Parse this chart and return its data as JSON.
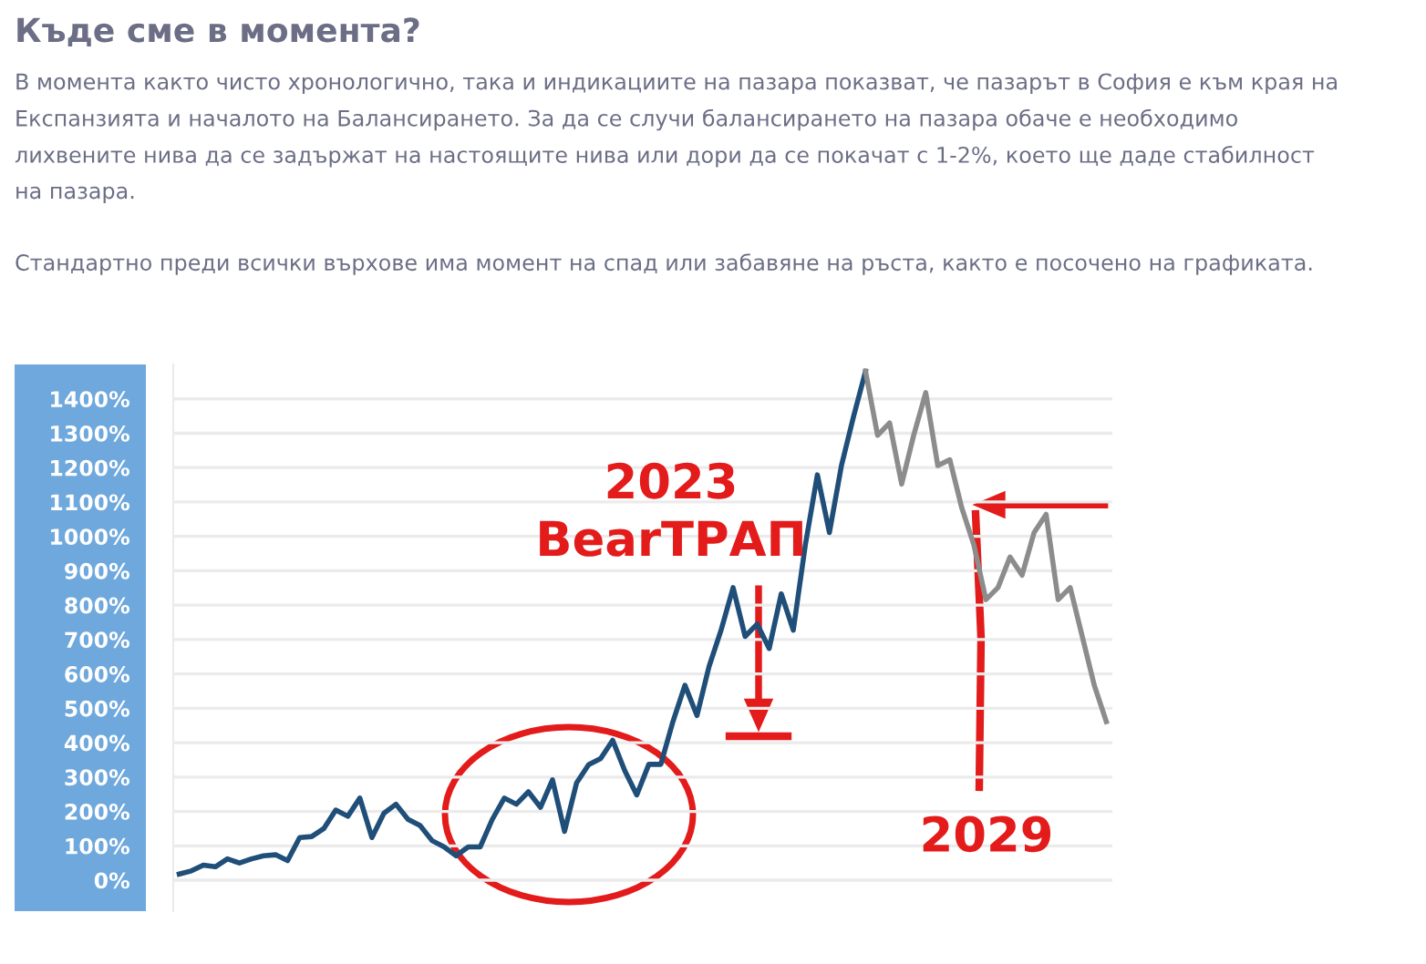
{
  "chart_data": {
    "type": "line",
    "title": "Къде сме в момента?",
    "annotations": [
      "В момента както чисто хронологично, така и индикациите на пазара показват, че пазарът в София е към края на\nЕкспанзията и началото на Балансирането. За да се случи балансирането на пазара обаче е необходимо\nлихвените нива да се задържат на настоящите нива или дори да се покачат с 1-2%, което ще даде стабилност\nна пазара.",
      "Стандартно преди всички върхове има момент на спад или забавяне на ръста, както е посочено на графиката.",
      "2023\nBearТРАП",
      "2029"
    ],
    "categories": [
      null,
      null,
      null,
      null,
      null,
      null,
      null,
      null,
      null,
      null,
      null,
      null,
      null,
      null,
      null,
      null,
      null,
      null,
      null,
      null,
      null,
      null,
      null,
      null,
      null,
      null,
      null,
      null,
      null,
      null,
      null,
      null,
      null,
      null,
      null,
      null,
      null,
      null,
      null,
      null,
      null,
      null,
      null,
      null,
      null,
      null,
      null,
      null,
      null,
      null,
      null,
      null,
      null,
      null,
      null,
      null,
      null,
      null,
      null,
      null,
      null,
      null,
      null,
      null,
      null,
      null,
      null,
      null,
      null,
      null,
      null,
      null,
      null,
      null,
      null,
      null,
      null,
      null
    ],
    "series": [
      {
        "color": "#1f4e79",
        "values": [
          18,
          27,
          44,
          39,
          62,
          50,
          62,
          71,
          74,
          57,
          124,
          127,
          150,
          204,
          186,
          239,
          124,
          195,
          221,
          177,
          159,
          115,
          97,
          71,
          97,
          97,
          177,
          239,
          221,
          257,
          212,
          292,
          142,
          283,
          336,
          354,
          407,
          319,
          248,
          337,
          337,
          461,
          567,
          479,
          621,
          727,
          851,
          709,
          745,
          674,
          833,
          727,
          975,
          1179,
          1011,
          1206,
          1348,
          1480,
          null,
          null,
          null,
          null,
          null,
          null,
          null,
          null,
          null,
          null,
          null,
          null,
          null,
          null,
          null,
          null,
          null,
          null,
          null,
          null
        ]
      },
      {
        "color": "#8c8c8c",
        "values": [
          null,
          null,
          null,
          null,
          null,
          null,
          null,
          null,
          null,
          null,
          null,
          null,
          null,
          null,
          null,
          null,
          null,
          null,
          null,
          null,
          null,
          null,
          null,
          null,
          null,
          null,
          null,
          null,
          null,
          null,
          null,
          null,
          null,
          null,
          null,
          null,
          null,
          null,
          null,
          null,
          null,
          null,
          null,
          null,
          null,
          null,
          null,
          null,
          null,
          null,
          null,
          null,
          null,
          null,
          null,
          null,
          null,
          1480,
          1294,
          1330,
          1152,
          1294,
          1418,
          1206,
          1223,
          1082,
          975,
          816,
          851,
          940,
          887,
          1011,
          1064,
          816,
          851,
          709,
          567,
          461
        ]
      }
    ],
    "ylim": [
      -90,
      1500
    ],
    "yticks": [
      {
        "value": 0,
        "label": "0%"
      },
      {
        "value": 100,
        "label": "100%"
      },
      {
        "value": 200,
        "label": "200%"
      },
      {
        "value": 300,
        "label": "300%"
      },
      {
        "value": 400,
        "label": "400%"
      },
      {
        "value": 500,
        "label": "500%"
      },
      {
        "value": 600,
        "label": "600%"
      },
      {
        "value": 700,
        "label": "700%"
      },
      {
        "value": 800,
        "label": "800%"
      },
      {
        "value": 900,
        "label": "900%"
      },
      {
        "value": 1000,
        "label": "1000%"
      },
      {
        "value": 1100,
        "label": "1100%"
      },
      {
        "value": 1200,
        "label": "1200%"
      },
      {
        "value": 1300,
        "label": "1300%"
      },
      {
        "value": 1400,
        "label": "1400%"
      }
    ],
    "tick_labels": "y",
    "grid": "y",
    "marker": "none",
    "line_style": "solid"
  }
}
